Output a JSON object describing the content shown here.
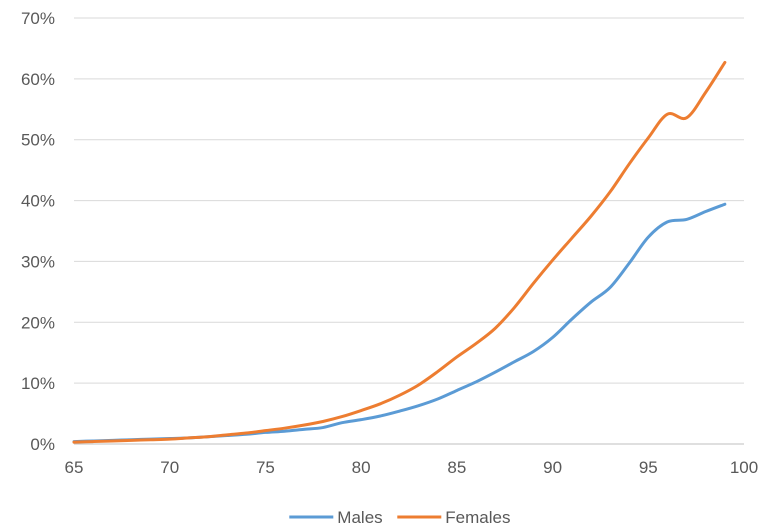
{
  "chart_data": {
    "type": "line",
    "title": "",
    "xlabel": "",
    "ylabel": "",
    "xlim": [
      65,
      100
    ],
    "ylim": [
      0,
      0.7
    ],
    "x_ticks": [
      65,
      70,
      75,
      80,
      85,
      90,
      95,
      100
    ],
    "y_ticks": [
      0,
      0.1,
      0.2,
      0.3,
      0.4,
      0.5,
      0.6,
      0.7
    ],
    "x_tick_labels": [
      "65",
      "70",
      "75",
      "80",
      "85",
      "90",
      "95",
      "100"
    ],
    "y_tick_labels": [
      "0%",
      "10%",
      "20%",
      "30%",
      "40%",
      "50%",
      "60%",
      "70%"
    ],
    "grid": true,
    "legend_position": "bottom",
    "x": [
      65,
      66,
      67,
      68,
      69,
      70,
      71,
      72,
      73,
      74,
      75,
      76,
      77,
      78,
      79,
      80,
      81,
      82,
      83,
      84,
      85,
      86,
      87,
      88,
      89,
      90,
      91,
      92,
      93,
      94,
      95,
      96,
      97,
      98,
      99
    ],
    "series": [
      {
        "name": "Males",
        "color": "#5b9bd5",
        "values": [
          0.004,
          0.005,
          0.006,
          0.007,
          0.008,
          0.009,
          0.01,
          0.012,
          0.014,
          0.016,
          0.019,
          0.021,
          0.024,
          0.027,
          0.035,
          0.04,
          0.046,
          0.054,
          0.063,
          0.074,
          0.088,
          0.102,
          0.118,
          0.135,
          0.152,
          0.175,
          0.205,
          0.233,
          0.257,
          0.297,
          0.34,
          0.365,
          0.369,
          0.382,
          0.394
        ]
      },
      {
        "name": "Females",
        "color": "#ed7d31",
        "values": [
          0.003,
          0.004,
          0.005,
          0.006,
          0.007,
          0.008,
          0.01,
          0.012,
          0.015,
          0.018,
          0.022,
          0.026,
          0.031,
          0.037,
          0.045,
          0.055,
          0.066,
          0.08,
          0.097,
          0.119,
          0.143,
          0.165,
          0.19,
          0.224,
          0.264,
          0.302,
          0.338,
          0.374,
          0.414,
          0.46,
          0.503,
          0.542,
          0.536,
          0.578,
          0.627
        ]
      }
    ]
  }
}
